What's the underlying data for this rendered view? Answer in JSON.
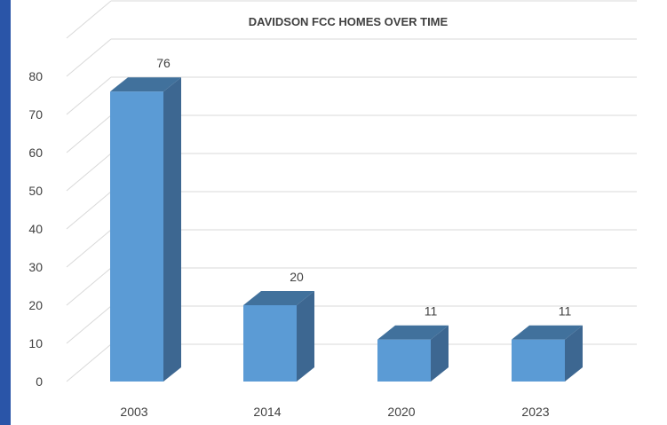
{
  "chart_data": {
    "type": "bar",
    "title": "DAVIDSON FCC HOMES OVER TIME",
    "categories": [
      "2003",
      "2014",
      "2020",
      "2023"
    ],
    "values": [
      76,
      20,
      11,
      11
    ],
    "data_labels": [
      "76",
      "20",
      "11",
      "11"
    ],
    "y_ticks": [
      "0",
      "10",
      "20",
      "30",
      "40",
      "50",
      "60",
      "70",
      "80"
    ],
    "ylim": [
      0,
      90
    ],
    "grid": true,
    "legend": "none",
    "three_d": true,
    "colors": {
      "front": "#5b9bd5",
      "top": "#41719c",
      "side": "#3d6791",
      "grid": "#d9d9d9",
      "background_frame": "#2a55a8"
    }
  }
}
